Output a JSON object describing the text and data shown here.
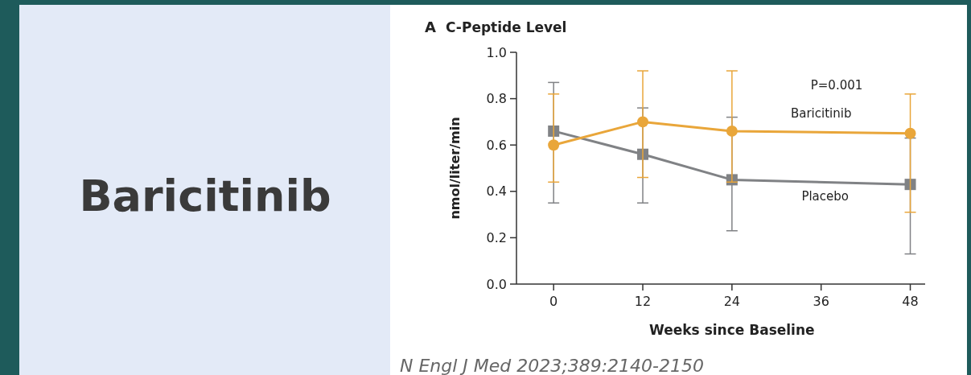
{
  "chart_data": {
    "type": "line",
    "title": "C-Peptide Level",
    "xlabel": "Weeks since Baseline",
    "ylabel": "nmol/liter/min",
    "annotations": [
      "A",
      "P=0.001",
      "Baricitinib",
      "N Engl J Med 2023;389:2140-2150"
    ],
    "x": [
      0,
      12,
      24,
      48
    ],
    "xlim": [
      -5,
      50
    ],
    "xticks": [
      0,
      12,
      24,
      36,
      48
    ],
    "ylim": [
      0,
      1.0
    ],
    "yticks": [
      {
        "value": 0,
        "label": "0.0"
      },
      0.2,
      0.4,
      0.6,
      0.8,
      {
        "value": 1,
        "label": "1.0"
      }
    ],
    "series": [
      {
        "name": "Baricitinib",
        "color": "#e9a63a",
        "marker": "circle",
        "values": [
          0.6,
          0.7,
          0.66,
          0.65
        ],
        "errors": [
          [
            0.44,
            0.82
          ],
          [
            0.46,
            0.92
          ],
          [
            0.44,
            0.92
          ],
          [
            0.31,
            0.82
          ]
        ]
      },
      {
        "name": "Placebo",
        "color": "#808285",
        "marker": "square",
        "values": [
          0.66,
          0.56,
          0.45,
          0.43
        ],
        "errors": [
          [
            0.35,
            0.87
          ],
          [
            0.35,
            0.76
          ],
          [
            0.23,
            0.72
          ],
          [
            0.13,
            0.63
          ]
        ]
      }
    ]
  }
}
